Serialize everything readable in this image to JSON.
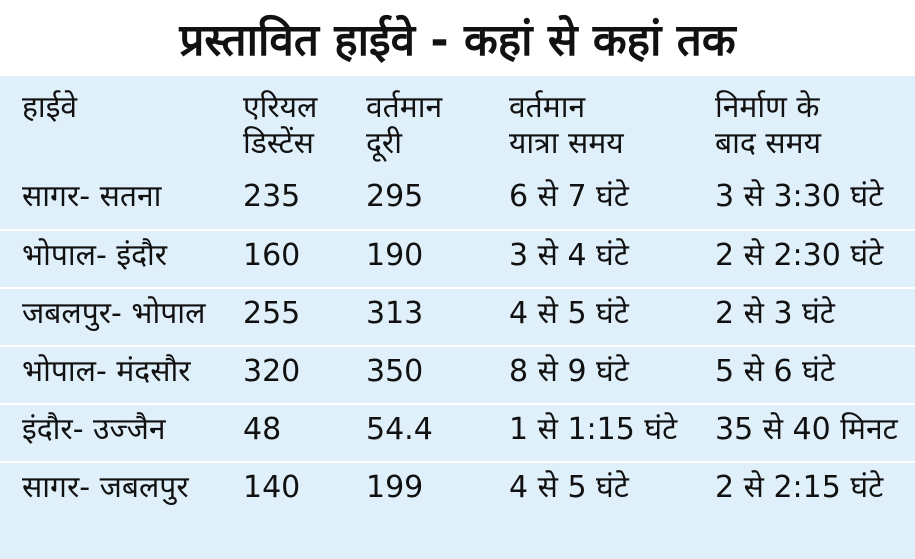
{
  "title": "प्रस्तावित हाईवे - कहां से कहां तक",
  "table": {
    "headers": [
      {
        "line1": "हाईवे",
        "line2": ""
      },
      {
        "line1": "एरियल",
        "line2": "डिस्टेंस"
      },
      {
        "line1": "वर्तमान",
        "line2": "दूरी"
      },
      {
        "line1": "वर्तमान",
        "line2": "यात्रा समय"
      },
      {
        "line1": "निर्माण के",
        "line2": "बाद समय"
      }
    ],
    "rows": [
      [
        "सागर- सतना",
        "235",
        "295",
        "6 से 7 घंटे",
        "3 से 3:30 घंटे"
      ],
      [
        "भोपाल- इंदौर",
        "160",
        "190",
        "3 से 4 घंटे",
        "2 से 2:30 घंटे"
      ],
      [
        "जबलपुर- भोपाल",
        "255",
        "313",
        "4 से 5 घंटे",
        "2 से 3 घंटे"
      ],
      [
        "भोपाल- मंदसौर",
        "320",
        "350",
        "8 से 9 घंटे",
        "5 से 6 घंटे"
      ],
      [
        "इंदौर- उज्जैन",
        "48",
        "54.4",
        "1 से 1:15 घंटे",
        "35 से 40 मिनट"
      ],
      [
        "सागर- जबलपुर",
        "140",
        "199",
        "4 से 5 घंटे",
        "2 से 2:15 घंटे"
      ]
    ]
  },
  "colors": {
    "panel_background": "#dff0fa",
    "row_separator": "#ffffff",
    "text": "#111111"
  }
}
